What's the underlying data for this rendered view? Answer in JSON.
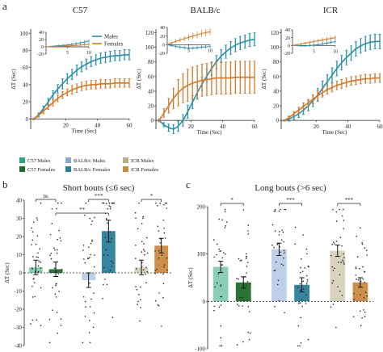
{
  "panel_labels": {
    "a": "a",
    "b": "b",
    "c": "c"
  },
  "colors": {
    "c57_male": "#2aa876",
    "c57_female": "#1f6b2a",
    "balb_male": "#8aa8d6",
    "balb_female": "#2a7f99",
    "icr_male": "#b8ae86",
    "icr_female": "#c98a42",
    "males": "#2a8fa8",
    "females": "#d2782a",
    "dots": "#222222"
  },
  "top_legend": {
    "males": "Males",
    "females": "Females"
  },
  "chart_data": [
    {
      "type": "line",
      "panel": "a",
      "title": "C57",
      "xlabel": "Time (Sec)",
      "ylabel": "ΔT (Sec)",
      "xlim": [
        -2,
        60
      ],
      "ylim": [
        -12,
        105
      ],
      "xticks": [
        20,
        40,
        60
      ],
      "yticks": [
        0,
        20,
        40,
        60,
        80,
        100
      ],
      "series": [
        {
          "name": "Males",
          "color": "#2a8fa8",
          "x": [
            0,
            3,
            6,
            9,
            12,
            15,
            18,
            21,
            24,
            27,
            30,
            33,
            36,
            39,
            42,
            45,
            48,
            51,
            54,
            57,
            60
          ],
          "y": [
            0,
            5,
            12,
            20,
            28,
            35,
            41,
            47,
            52,
            57,
            61,
            64,
            67,
            69,
            71,
            72,
            73,
            74,
            74,
            75,
            75
          ],
          "err": [
            1,
            2,
            3,
            4,
            5,
            5,
            6,
            6,
            6,
            6,
            6,
            6,
            6,
            6,
            6,
            6,
            6,
            6,
            6,
            6,
            6
          ]
        },
        {
          "name": "Females",
          "color": "#d2782a",
          "x": [
            0,
            3,
            6,
            9,
            12,
            15,
            18,
            21,
            24,
            27,
            30,
            33,
            36,
            39,
            42,
            45,
            48,
            51,
            54,
            57,
            60
          ],
          "y": [
            0,
            4,
            9,
            14,
            19,
            24,
            28,
            31,
            34,
            36,
            38,
            39,
            40,
            40,
            41,
            41,
            41,
            42,
            42,
            42,
            42
          ],
          "err": [
            1,
            2,
            3,
            3,
            4,
            4,
            4,
            4,
            5,
            5,
            5,
            5,
            5,
            5,
            5,
            5,
            5,
            5,
            5,
            5,
            5
          ]
        }
      ],
      "inset": {
        "xlim": [
          0,
          10
        ],
        "ylim": [
          -20,
          40
        ],
        "xticks": [
          5,
          10
        ],
        "yticks": [
          -20,
          0,
          20,
          40
        ],
        "series": [
          {
            "name": "Males",
            "x": [
              0,
              1,
              2,
              3,
              4,
              5,
              6,
              7,
              8,
              9,
              10
            ],
            "y": [
              0,
              1,
              2,
              3,
              4,
              5,
              7,
              9,
              11,
              13,
              16
            ],
            "err": [
              1,
              2,
              2,
              3,
              3,
              3,
              4,
              4,
              4,
              5,
              5
            ]
          },
          {
            "name": "Females",
            "x": [
              0,
              1,
              2,
              3,
              4,
              5,
              6,
              7,
              8,
              9,
              10
            ],
            "y": [
              0,
              0,
              1,
              1,
              2,
              2,
              3,
              4,
              5,
              6,
              7
            ],
            "err": [
              1,
              1,
              2,
              2,
              2,
              3,
              3,
              3,
              3,
              4,
              4
            ]
          }
        ]
      }
    },
    {
      "type": "line",
      "panel": "a",
      "title": "BALB/c",
      "xlabel": "Time (Sec)",
      "ylabel": "ΔT (Sec)",
      "xlim": [
        -2,
        60
      ],
      "ylim": [
        -12,
        125
      ],
      "xticks": [
        20,
        40,
        60
      ],
      "yticks": [
        0,
        20,
        40,
        60,
        80,
        100,
        120
      ],
      "series": [
        {
          "name": "Males",
          "color": "#2a8fa8",
          "x": [
            0,
            3,
            6,
            9,
            12,
            15,
            18,
            21,
            24,
            27,
            30,
            33,
            36,
            39,
            42,
            45,
            48,
            51,
            54,
            57,
            60
          ],
          "y": [
            0,
            -6,
            -10,
            -12,
            -8,
            0,
            12,
            25,
            38,
            50,
            61,
            71,
            80,
            88,
            94,
            99,
            103,
            106,
            108,
            110,
            111
          ],
          "err": [
            1,
            3,
            5,
            6,
            7,
            8,
            9,
            9,
            9,
            9,
            9,
            9,
            9,
            9,
            9,
            9,
            9,
            9,
            9,
            9,
            9
          ]
        },
        {
          "name": "Females",
          "color": "#d2782a",
          "x": [
            0,
            3,
            6,
            9,
            12,
            15,
            18,
            21,
            24,
            27,
            30,
            33,
            36,
            39,
            42,
            45,
            48,
            51,
            54,
            57,
            60
          ],
          "y": [
            0,
            10,
            20,
            30,
            38,
            44,
            48,
            51,
            53,
            55,
            56,
            57,
            58,
            58,
            58,
            58,
            59,
            59,
            59,
            59,
            59
          ],
          "err": [
            2,
            6,
            10,
            14,
            18,
            20,
            22,
            22,
            22,
            22,
            22,
            22,
            22,
            22,
            22,
            22,
            22,
            22,
            22,
            22,
            22
          ]
        }
      ],
      "inset": {
        "xlim": [
          0,
          10
        ],
        "ylim": [
          -20,
          40
        ],
        "xticks": [
          5,
          10
        ],
        "yticks": [
          -20,
          0,
          20,
          40
        ],
        "series": [
          {
            "name": "Males",
            "x": [
              0,
              1,
              2,
              3,
              4,
              5,
              6,
              7,
              8,
              9,
              10
            ],
            "y": [
              0,
              -2,
              -4,
              -6,
              -7,
              -8,
              -8,
              -7,
              -6,
              -5,
              -4
            ],
            "err": [
              1,
              2,
              3,
              4,
              4,
              4,
              4,
              4,
              4,
              4,
              4
            ]
          },
          {
            "name": "Females",
            "x": [
              0,
              1,
              2,
              3,
              4,
              5,
              6,
              7,
              8,
              9,
              10
            ],
            "y": [
              0,
              4,
              8,
              11,
              14,
              17,
              20,
              23,
              26,
              28,
              30
            ],
            "err": [
              1,
              3,
              4,
              5,
              6,
              7,
              7,
              8,
              8,
              8,
              8
            ]
          }
        ]
      }
    },
    {
      "type": "line",
      "panel": "a",
      "title": "ICR",
      "xlabel": "Time (Sec)",
      "ylabel": "ΔT (Sec)",
      "xlim": [
        -2,
        60
      ],
      "ylim": [
        -12,
        125
      ],
      "xticks": [
        20,
        40,
        60
      ],
      "yticks": [
        0,
        20,
        40,
        60,
        80,
        100,
        120
      ],
      "series": [
        {
          "name": "Males",
          "color": "#2a8fa8",
          "x": [
            0,
            3,
            6,
            9,
            12,
            15,
            18,
            21,
            24,
            27,
            30,
            33,
            36,
            39,
            42,
            45,
            48,
            51,
            54,
            57,
            60
          ],
          "y": [
            0,
            2,
            5,
            9,
            14,
            20,
            27,
            35,
            44,
            53,
            62,
            71,
            79,
            86,
            92,
            98,
            102,
            105,
            107,
            108,
            108
          ],
          "err": [
            1,
            3,
            4,
            5,
            6,
            7,
            8,
            9,
            10,
            10,
            10,
            10,
            10,
            10,
            10,
            10,
            10,
            10,
            10,
            10,
            10
          ]
        },
        {
          "name": "Females",
          "color": "#d2782a",
          "x": [
            0,
            3,
            6,
            9,
            12,
            15,
            18,
            21,
            24,
            27,
            30,
            33,
            36,
            39,
            42,
            45,
            48,
            51,
            54,
            57,
            60
          ],
          "y": [
            0,
            4,
            9,
            14,
            19,
            24,
            29,
            34,
            38,
            42,
            45,
            48,
            50,
            52,
            54,
            55,
            56,
            57,
            57,
            58,
            58
          ],
          "err": [
            1,
            2,
            3,
            4,
            5,
            5,
            6,
            6,
            6,
            6,
            6,
            6,
            6,
            6,
            6,
            6,
            6,
            6,
            6,
            6,
            6
          ]
        }
      ],
      "inset": {
        "xlim": [
          0,
          10
        ],
        "ylim": [
          -20,
          40
        ],
        "xticks": [
          5,
          10
        ],
        "yticks": [
          -20,
          0,
          20,
          40
        ],
        "series": [
          {
            "name": "Males",
            "x": [
              0,
              1,
              2,
              3,
              4,
              5,
              6,
              7,
              8,
              9,
              10
            ],
            "y": [
              0,
              0,
              -1,
              -1,
              0,
              1,
              2,
              4,
              6,
              8,
              10
            ],
            "err": [
              1,
              2,
              3,
              3,
              4,
              4,
              4,
              5,
              5,
              5,
              5
            ]
          },
          {
            "name": "Females",
            "x": [
              0,
              1,
              2,
              3,
              4,
              5,
              6,
              7,
              8,
              9,
              10
            ],
            "y": [
              0,
              2,
              4,
              6,
              8,
              10,
              12,
              14,
              16,
              18,
              20
            ],
            "err": [
              1,
              2,
              3,
              3,
              4,
              4,
              5,
              5,
              5,
              6,
              6
            ]
          }
        ]
      }
    },
    {
      "type": "bar",
      "panel": "b",
      "title": "Short bouts (≤6 sec)",
      "ylabel": "ΔT (Sec)",
      "ylim": [
        -40,
        40
      ],
      "yticks": [
        -40,
        -30,
        -20,
        -10,
        0,
        10,
        20,
        30,
        40
      ],
      "categories": [
        "C57 Males",
        "C57 Females",
        "BALB/c Males",
        "BALB/c Females",
        "ICR Males",
        "ICR Females"
      ],
      "values": [
        3,
        2,
        -4,
        23,
        3,
        15
      ],
      "errors": [
        4,
        4,
        4,
        6,
        4,
        4
      ],
      "significance": [
        {
          "from": 0,
          "to": 1,
          "label": "ns"
        },
        {
          "from": 2,
          "to": 3,
          "label": "***"
        },
        {
          "from": 1,
          "to": 3,
          "label": "**"
        },
        {
          "from": 4,
          "to": 5,
          "label": "*"
        }
      ]
    },
    {
      "type": "bar",
      "panel": "c",
      "title": "Long bouts (>6 sec)",
      "ylabel": "ΔT (Sec)",
      "ylim": [
        -100,
        200
      ],
      "yticks": [
        -100,
        0,
        100,
        200
      ],
      "categories": [
        "C57 Males",
        "C57 Females",
        "BALB/c Males",
        "BALB/c Females",
        "ICR Males",
        "ICR Females"
      ],
      "values": [
        73,
        40,
        110,
        35,
        107,
        40
      ],
      "errors": [
        12,
        12,
        13,
        15,
        12,
        10
      ],
      "significance": [
        {
          "from": 0,
          "to": 1,
          "label": "*"
        },
        {
          "from": 2,
          "to": 3,
          "label": "***"
        },
        {
          "from": 4,
          "to": 5,
          "label": "***"
        }
      ]
    }
  ],
  "bar_legend": [
    {
      "label": "C57 Males",
      "color": "#2aa876"
    },
    {
      "label": "C57 Females",
      "color": "#1f6b2a"
    },
    {
      "label": "BALB/c Males",
      "color": "#8aa8d6"
    },
    {
      "label": "BALB/c Females",
      "color": "#2a7f99"
    },
    {
      "label": "ICR Males",
      "color": "#b8ae86"
    },
    {
      "label": "ICR Females",
      "color": "#c98a42"
    }
  ]
}
